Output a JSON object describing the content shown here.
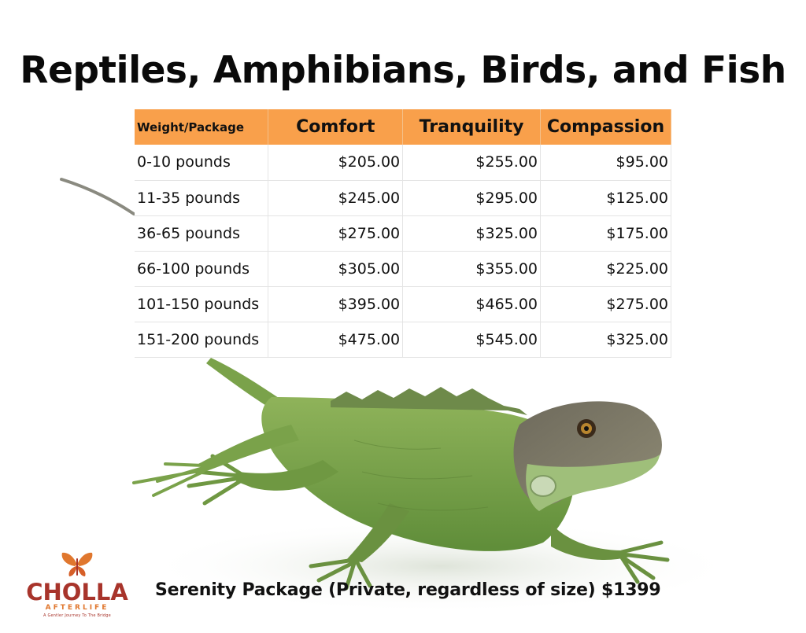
{
  "title": "Reptiles, Amphibians, Birds, and Fish",
  "table": {
    "headers": [
      "Weight/Package",
      "Comfort",
      "Tranquility",
      "Compassion"
    ],
    "rows": [
      [
        "0-10 pounds",
        "$205.00",
        "$255.00",
        "$95.00"
      ],
      [
        "11-35 pounds",
        "$245.00",
        "$295.00",
        "$125.00"
      ],
      [
        "36-65 pounds",
        "$275.00",
        "$325.00",
        "$175.00"
      ],
      [
        "66-100 pounds",
        "$305.00",
        "$355.00",
        "$225.00"
      ],
      [
        "101-150 pounds",
        "$395.00",
        "$465.00",
        "$275.00"
      ],
      [
        "151-200 pounds",
        "$475.00",
        "$545.00",
        "$325.00"
      ]
    ]
  },
  "serenity_text": "Serenity Package (Private, regardless of size) $1399",
  "logo": {
    "name": "CHOLLA",
    "sub": "AFTERLIFE",
    "tagline": "A Gentler Journey To The Bridge"
  },
  "colors": {
    "header_orange": "#f9a04b",
    "logo_red": "#a8342b",
    "logo_orange": "#e0772e",
    "lizard_green": "#7faa4e"
  },
  "image": {
    "icon": "iguana-illustration"
  }
}
